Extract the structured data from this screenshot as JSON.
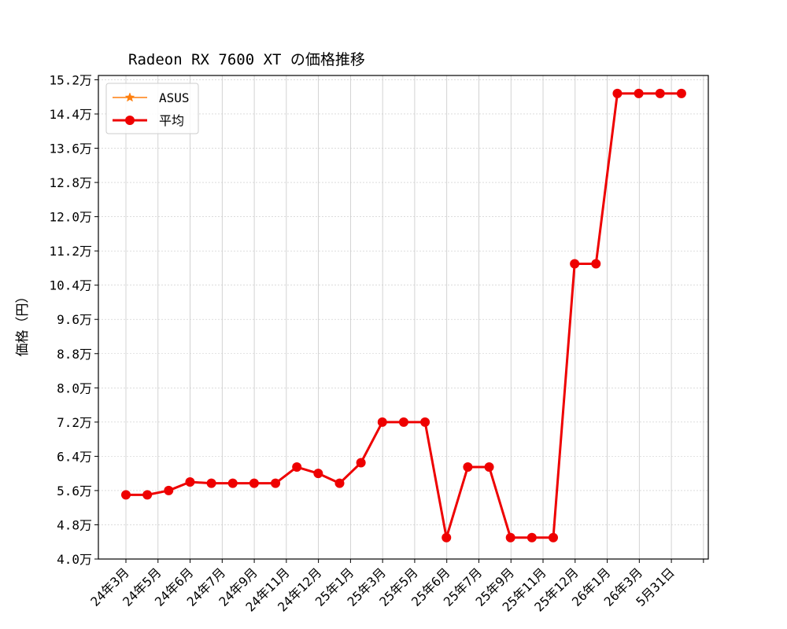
{
  "chart_data": {
    "type": "line",
    "title": "Radeon RX 7600 XT の価格推移",
    "ylabel": "価格（円）",
    "xlabel": "",
    "ylim": [
      40000,
      153000
    ],
    "yticks": [
      40000,
      48000,
      56000,
      64000,
      72000,
      80000,
      88000,
      96000,
      104000,
      112000,
      120000,
      128000,
      136000,
      144000,
      152000
    ],
    "ytick_labels": [
      "4.0万",
      "4.8万",
      "5.6万",
      "6.4万",
      "7.2万",
      "8.0万",
      "8.8万",
      "9.6万",
      "10.4万",
      "11.2万",
      "12.0万",
      "12.8万",
      "13.6万",
      "14.4万",
      "15.2万"
    ],
    "xtick_labels": [
      "24年3月",
      "24年5月",
      "24年6月",
      "24年7月",
      "24年9月",
      "24年11月",
      "24年12月",
      "25年1月",
      "25年3月",
      "25年5月",
      "25年6月",
      "25年7月",
      "25年9月",
      "25年11月",
      "25年12月",
      "26年1月",
      "26年3月",
      "5月31日"
    ],
    "grid": true,
    "legend_position": "upper-left",
    "series": [
      {
        "name": "ASUS",
        "color": "#ff7f0e",
        "marker": "star",
        "values": [
          55000,
          55000,
          56000,
          58000,
          57700,
          57700,
          57700,
          57700,
          61500,
          60000,
          57700,
          62500,
          72000,
          72000,
          72000,
          45000,
          61500,
          61500,
          45000,
          45000,
          45000,
          109000,
          109000,
          148800,
          148800,
          148800,
          148800
        ]
      },
      {
        "name": "平均",
        "color": "#ee0000",
        "marker": "circle",
        "values": [
          55000,
          55000,
          56000,
          58000,
          57700,
          57700,
          57700,
          57700,
          61500,
          60000,
          57700,
          62500,
          72000,
          72000,
          72000,
          45000,
          61500,
          61500,
          45000,
          45000,
          45000,
          109000,
          109000,
          148800,
          148800,
          148800,
          148800
        ]
      }
    ]
  }
}
